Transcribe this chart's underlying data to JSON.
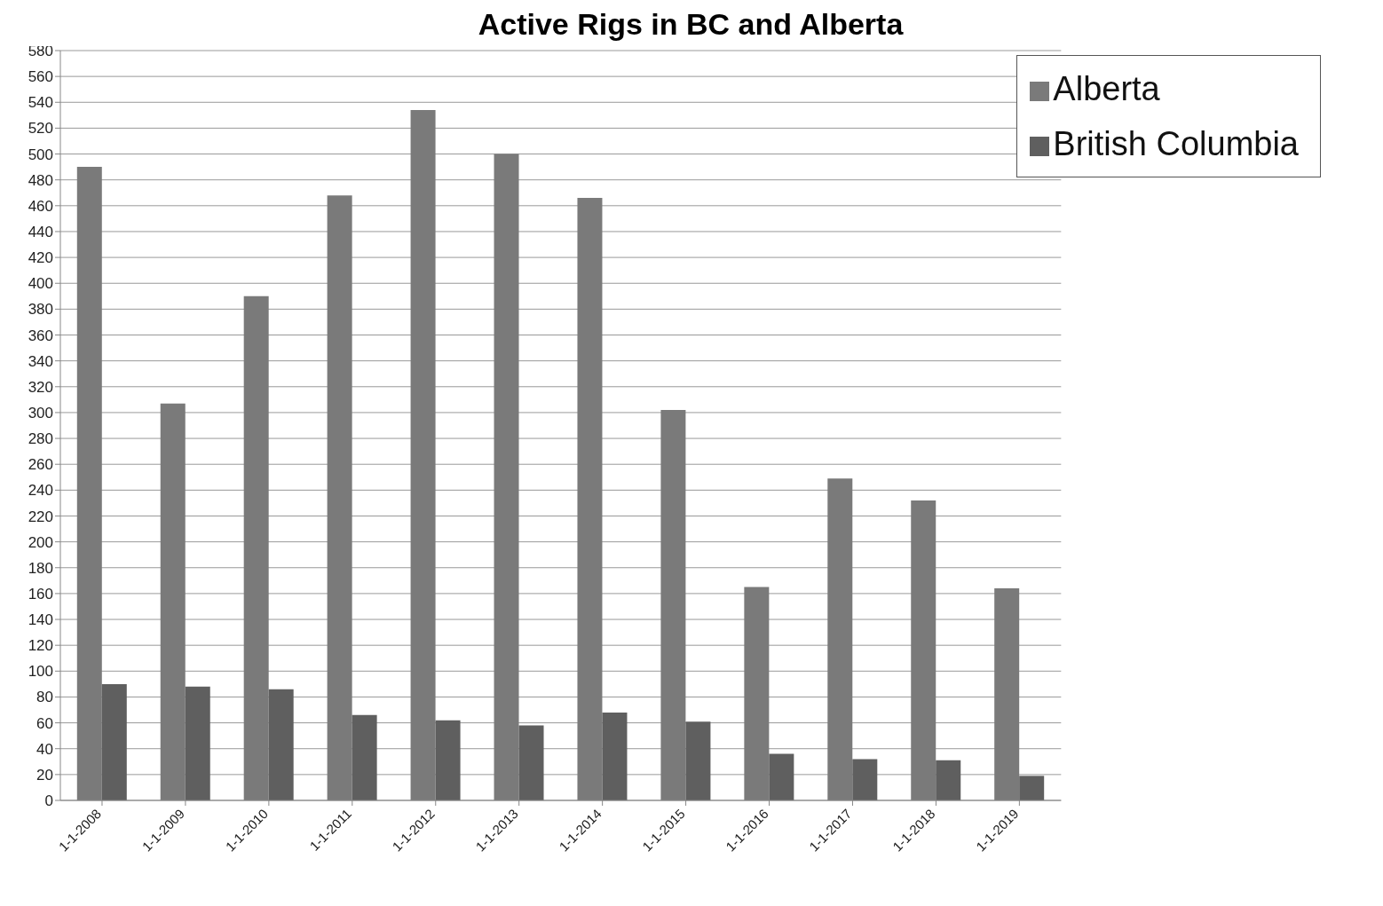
{
  "chart_data": {
    "type": "bar",
    "title": "Active Rigs in BC and Alberta",
    "categories": [
      "1-1-2008",
      "1-1-2009",
      "1-1-2010",
      "1-1-2011",
      "1-1-2012",
      "1-1-2013",
      "1-1-2014",
      "1-1-2015",
      "1-1-2016",
      "1-1-2017",
      "1-1-2018",
      "1-1-2019"
    ],
    "series": [
      {
        "name": "Alberta",
        "color": "#7a7a7a",
        "values": [
          490,
          307,
          390,
          468,
          534,
          500,
          466,
          302,
          165,
          249,
          232,
          164
        ]
      },
      {
        "name": "British Columbia",
        "color": "#5f5f5f",
        "values": [
          90,
          88,
          86,
          66,
          62,
          58,
          68,
          61,
          36,
          32,
          31,
          19
        ]
      }
    ],
    "ylim": [
      0,
      580
    ],
    "yticks": [
      0,
      20,
      40,
      60,
      80,
      100,
      120,
      140,
      160,
      180,
      200,
      220,
      240,
      260,
      280,
      300,
      320,
      340,
      360,
      380,
      400,
      420,
      440,
      460,
      480,
      500,
      520,
      540,
      560,
      580
    ],
    "grid": "y",
    "legend": "top right"
  }
}
